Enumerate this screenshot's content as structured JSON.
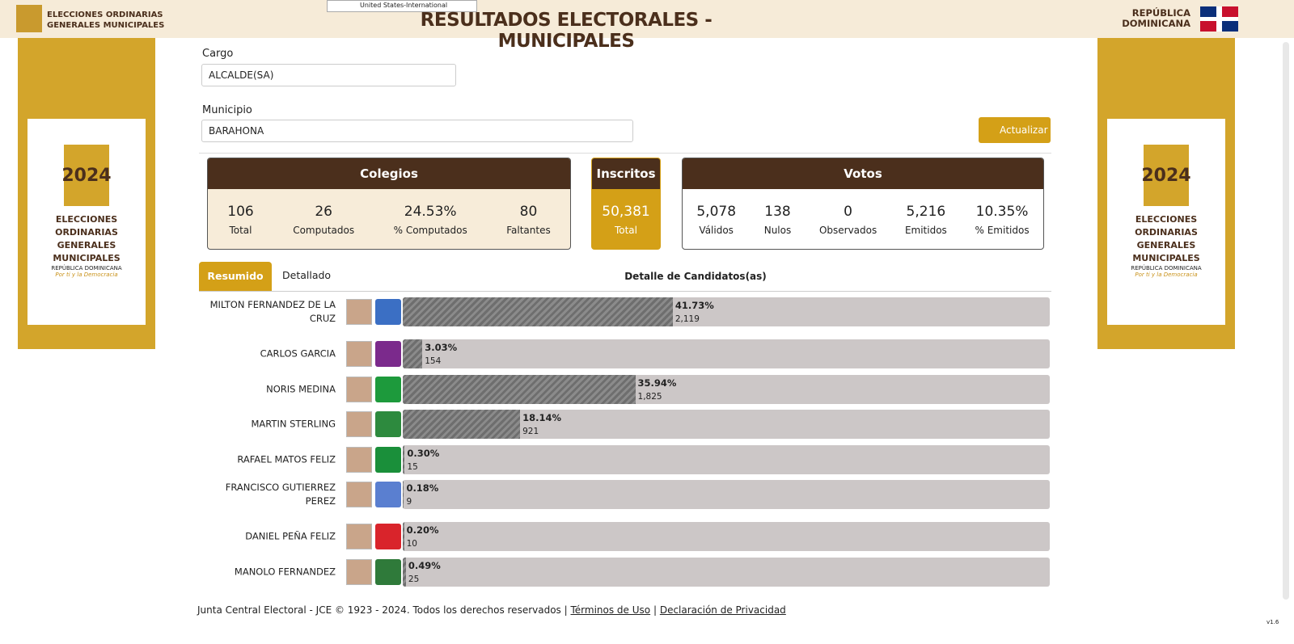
{
  "header": {
    "logo_text": [
      "ELECCIONES ORDINARIAS",
      "GENERALES MUNICIPALES"
    ],
    "title": "RESULTADOS ELECTORALES - MUNICIPALES",
    "country": [
      "REPÚBLICA",
      "DOMINICANA"
    ],
    "keyboard": "United States-International"
  },
  "side_banner": {
    "year": "2024",
    "title": [
      "ELECCIONES ORDINARIAS",
      "GENERALES MUNICIPALES"
    ],
    "country": "REPÚBLICA DOMINICANA",
    "slogan": "Por ti y la Democracia"
  },
  "filters": {
    "cargo_label": "Cargo",
    "cargo": "ALCALDE(SA)",
    "municipio_label": "Municipio",
    "municipio": "BARAHONA",
    "refresh": "Actualizar"
  },
  "colegios": {
    "title": "Colegios",
    "items": [
      {
        "value": "106",
        "label": "Total"
      },
      {
        "value": "26",
        "label": "Computados"
      },
      {
        "value": "24.53%",
        "label": "% Computados"
      },
      {
        "value": "80",
        "label": "Faltantes"
      }
    ]
  },
  "inscritos": {
    "title": "Inscritos",
    "items": [
      {
        "value": "50,381",
        "label": "Total"
      }
    ]
  },
  "votos": {
    "title": "Votos",
    "items": [
      {
        "value": "5,078",
        "label": "Válidos"
      },
      {
        "value": "138",
        "label": "Nulos"
      },
      {
        "value": "0",
        "label": "Observados"
      },
      {
        "value": "5,216",
        "label": "Emitidos"
      },
      {
        "value": "10.35%",
        "label": "% Emitidos"
      }
    ]
  },
  "tabs": [
    "Resumido",
    "Detallado"
  ],
  "detail_title": "Detalle de Candidatos(as)",
  "candidates": [
    {
      "name": "MILTON FERNANDEZ DE LA CRUZ",
      "percent": 41.73,
      "percent_label": "41.73%",
      "votes": "2,119"
    },
    {
      "name": "CARLOS GARCIA",
      "percent": 3.03,
      "percent_label": "3.03%",
      "votes": "154"
    },
    {
      "name": "NORIS MEDINA",
      "percent": 35.94,
      "percent_label": "35.94%",
      "votes": "1,825"
    },
    {
      "name": "MARTIN STERLING",
      "percent": 18.14,
      "percent_label": "18.14%",
      "votes": "921"
    },
    {
      "name": "RAFAEL MATOS FELIZ",
      "percent": 0.3,
      "percent_label": "0.30%",
      "votes": "15"
    },
    {
      "name": "FRANCISCO GUTIERREZ PEREZ",
      "percent": 0.18,
      "percent_label": "0.18%",
      "votes": "9"
    },
    {
      "name": "DANIEL PEÑA FELIZ",
      "percent": 0.2,
      "percent_label": "0.20%",
      "votes": "10"
    },
    {
      "name": "MANOLO FERNANDEZ",
      "percent": 0.49,
      "percent_label": "0.49%",
      "votes": "25"
    }
  ],
  "footer": {
    "text": "Junta Central Electoral - JCE © 1923 - 2024. Todos los derechos reservados |",
    "terms": "Términos de Uso",
    "sep": "|",
    "privacy": "Declaración de Privacidad"
  },
  "version": "v1.6"
}
